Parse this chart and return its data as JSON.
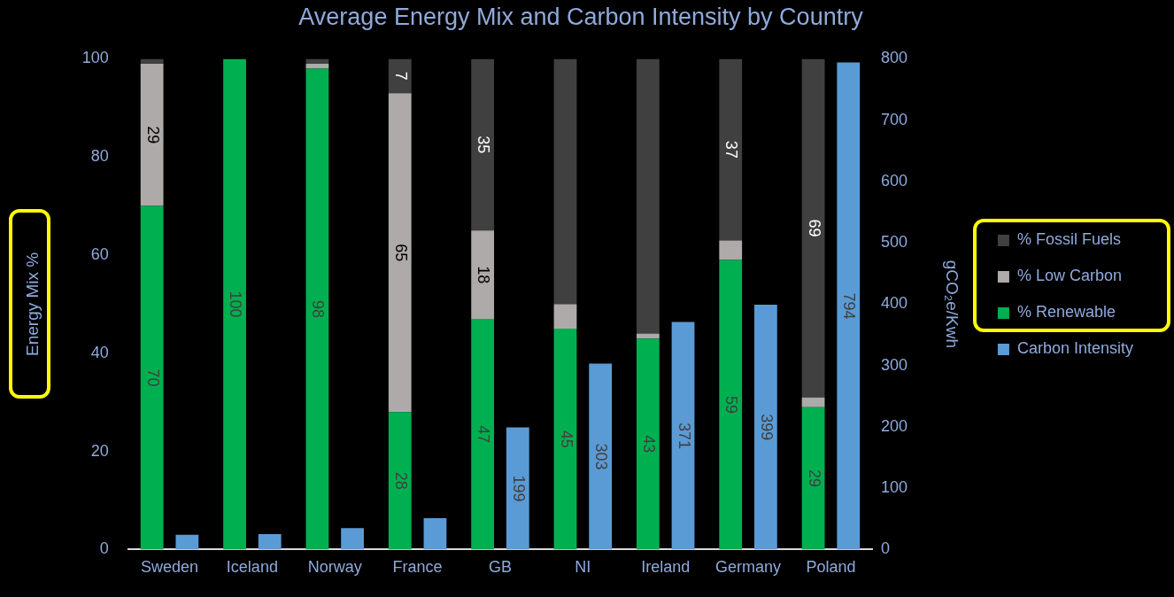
{
  "chart_data": {
    "type": "bar",
    "title": "Average Energy Mix and Carbon Intensity by Country",
    "ylabel": "Energy Mix %",
    "y2label": "gCO₂e/Kwh",
    "categories": [
      "Sweden",
      "Iceland",
      "Norway",
      "France",
      "GB",
      "NI",
      "Ireland",
      "Germany",
      "Poland"
    ],
    "stacked": true,
    "legend": "right",
    "grid": false,
    "series": [
      {
        "name": "% Renewable",
        "color": "#00b050",
        "values": [
          70,
          100,
          98,
          28,
          47,
          45,
          43,
          59,
          29
        ],
        "value_labels": [
          "70",
          "100",
          "98",
          "28",
          "47",
          "45",
          "43",
          "59",
          "29"
        ]
      },
      {
        "name": "% Low Carbon",
        "color": "#aeaaaa",
        "values": [
          29,
          0,
          1,
          65,
          18,
          5,
          1,
          4,
          2
        ],
        "value_labels": [
          "29",
          null,
          null,
          "65",
          "18",
          null,
          null,
          null,
          null
        ]
      },
      {
        "name": "% Fossil Fuels",
        "color": "#404040",
        "values": [
          1,
          0,
          1,
          7,
          35,
          50,
          56,
          37,
          69
        ],
        "value_labels": [
          null,
          null,
          null,
          "7",
          "35",
          null,
          null,
          "37",
          "69"
        ]
      },
      {
        "name": "Carbon Intensity",
        "color": "#5b9bd5",
        "axis": "y2",
        "values": [
          24,
          25,
          35,
          51,
          199,
          303,
          371,
          399,
          794
        ],
        "value_labels": [
          null,
          null,
          null,
          null,
          "199",
          "303",
          "371",
          "399",
          "794"
        ]
      }
    ],
    "ylim": [
      0,
      100
    ],
    "yticks": [
      0,
      20,
      40,
      60,
      80,
      100
    ],
    "y2lim": [
      0,
      800
    ],
    "y2ticks": [
      0,
      100,
      200,
      300,
      400,
      500,
      600,
      700,
      800
    ]
  }
}
